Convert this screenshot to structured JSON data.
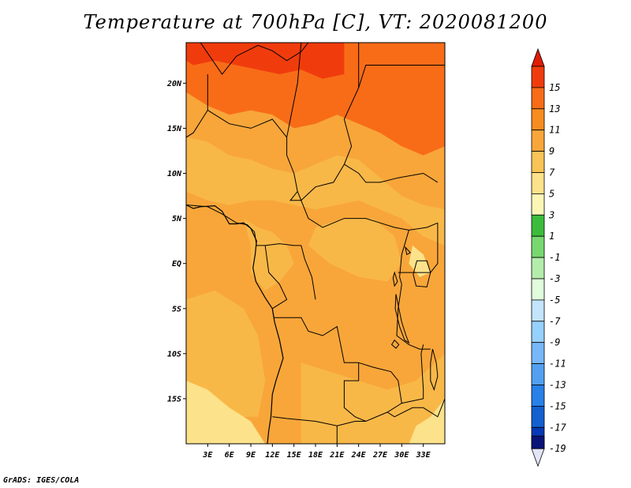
{
  "title": "Temperature at 700hPa [C], VT: 2020081200",
  "credit": "GrADS: IGES/COLA",
  "map": {
    "lon_range": [
      0,
      36
    ],
    "lat_range": [
      -20,
      24.5
    ],
    "lat_ticks": [
      {
        "value": 20,
        "label": "20N"
      },
      {
        "value": 15,
        "label": "15N"
      },
      {
        "value": 10,
        "label": "10N"
      },
      {
        "value": 5,
        "label": "5N"
      },
      {
        "value": 0,
        "label": "EQ"
      },
      {
        "value": -5,
        "label": "5S"
      },
      {
        "value": -10,
        "label": "10S"
      },
      {
        "value": -15,
        "label": "15S"
      }
    ],
    "lon_ticks": [
      {
        "value": 3,
        "label": "3E"
      },
      {
        "value": 6,
        "label": "6E"
      },
      {
        "value": 9,
        "label": "9E"
      },
      {
        "value": 12,
        "label": "12E"
      },
      {
        "value": 15,
        "label": "15E"
      },
      {
        "value": 18,
        "label": "18E"
      },
      {
        "value": 21,
        "label": "21E"
      },
      {
        "value": 24,
        "label": "24E"
      },
      {
        "value": 27,
        "label": "27E"
      },
      {
        "value": 30,
        "label": "30E"
      },
      {
        "value": 33,
        "label": "33E"
      }
    ],
    "background_color": "#f8a63a",
    "regions": [
      {
        "name": "sahara-11-13",
        "color": "#f86c18",
        "coords": [
          [
            0,
            24.5
          ],
          [
            36,
            24.5
          ],
          [
            36,
            13
          ],
          [
            33,
            12
          ],
          [
            30,
            13
          ],
          [
            27,
            14.5
          ],
          [
            24,
            15.5
          ],
          [
            21,
            16.5
          ],
          [
            18,
            15.5
          ],
          [
            15,
            15
          ],
          [
            12,
            16.5
          ],
          [
            9,
            17
          ],
          [
            6,
            16.5
          ],
          [
            3,
            17.5
          ],
          [
            0,
            19
          ]
        ]
      },
      {
        "name": "sahara-13-15",
        "color": "#f03c0c",
        "coords": [
          [
            0,
            24.5
          ],
          [
            22,
            24.5
          ],
          [
            22,
            21
          ],
          [
            19,
            20.5
          ],
          [
            16,
            21.5
          ],
          [
            13,
            21
          ],
          [
            10,
            21.5
          ],
          [
            7,
            22
          ],
          [
            4,
            22.5
          ],
          [
            1,
            22
          ],
          [
            0,
            22.5
          ]
        ]
      },
      {
        "name": "sahel-7-9",
        "color": "#f8b848",
        "coords": [
          [
            0,
            14
          ],
          [
            3,
            13.5
          ],
          [
            6,
            12
          ],
          [
            9,
            11.5
          ],
          [
            12,
            10.5
          ],
          [
            15,
            10
          ],
          [
            18,
            11
          ],
          [
            21,
            12
          ],
          [
            24,
            11.5
          ],
          [
            27,
            9.5
          ],
          [
            30,
            7.5
          ],
          [
            33,
            6.5
          ],
          [
            36,
            6
          ],
          [
            36,
            2
          ],
          [
            33,
            3
          ],
          [
            30,
            5
          ],
          [
            27,
            6
          ],
          [
            24,
            7
          ],
          [
            21,
            6.5
          ],
          [
            18,
            6
          ],
          [
            15,
            6.5
          ],
          [
            12,
            7
          ],
          [
            9,
            7
          ],
          [
            6,
            6.5
          ],
          [
            3,
            7
          ],
          [
            0,
            8
          ]
        ]
      },
      {
        "name": "cameroon-7-9",
        "color": "#f8b848",
        "coords": [
          [
            8,
            5
          ],
          [
            10,
            4
          ],
          [
            12,
            3.5
          ],
          [
            14,
            2
          ],
          [
            15,
            0
          ],
          [
            13,
            -2
          ],
          [
            11,
            -3
          ],
          [
            9,
            -1
          ],
          [
            9,
            2
          ]
        ]
      },
      {
        "name": "drc-north-7-9",
        "color": "#f8b848",
        "coords": [
          [
            18,
            4
          ],
          [
            22,
            5
          ],
          [
            26,
            5
          ],
          [
            29,
            3
          ],
          [
            30,
            0
          ],
          [
            28,
            -2
          ],
          [
            24,
            -1.5
          ],
          [
            20,
            0
          ],
          [
            17,
            2
          ]
        ]
      },
      {
        "name": "coast-7-9",
        "color": "#f8b848",
        "coords": [
          [
            0,
            -4
          ],
          [
            4,
            -3
          ],
          [
            8,
            -5
          ],
          [
            10,
            -8
          ],
          [
            11,
            -13
          ],
          [
            10,
            -17
          ],
          [
            6,
            -17
          ],
          [
            2,
            -15
          ],
          [
            0,
            -13
          ]
        ]
      },
      {
        "name": "south-7-9",
        "color": "#f8b848",
        "coords": [
          [
            16,
            -11
          ],
          [
            20,
            -12
          ],
          [
            24,
            -13
          ],
          [
            28,
            -14
          ],
          [
            32,
            -13
          ],
          [
            36,
            -10
          ],
          [
            36,
            -20
          ],
          [
            16,
            -20
          ]
        ]
      },
      {
        "name": "southwest-5-7",
        "color": "#fce28a",
        "coords": [
          [
            0,
            -13
          ],
          [
            3,
            -14
          ],
          [
            6,
            -16
          ],
          [
            9,
            -17.5
          ],
          [
            11,
            -20
          ],
          [
            0,
            -20
          ]
        ]
      },
      {
        "name": "southeast-5-7",
        "color": "#fce28a",
        "coords": [
          [
            31,
            -20
          ],
          [
            32,
            -18
          ],
          [
            34,
            -17
          ],
          [
            36,
            -15
          ],
          [
            36,
            -20
          ]
        ]
      },
      {
        "name": "uganda-5-7",
        "color": "#fce28a",
        "coords": [
          [
            31.5,
            2
          ],
          [
            33,
            1
          ],
          [
            34,
            -1
          ],
          [
            32.5,
            -1.5
          ],
          [
            31,
            0
          ]
        ]
      }
    ],
    "borders": [
      [
        [
          2,
          24.5
        ],
        [
          5,
          21
        ],
        [
          7,
          23
        ],
        [
          10,
          24.2
        ],
        [
          12,
          23.6
        ],
        [
          14,
          22.5
        ],
        [
          16,
          23.5
        ],
        [
          17,
          24.5
        ]
      ],
      [
        [
          3,
          21
        ],
        [
          3,
          17
        ],
        [
          1,
          14.5
        ],
        [
          0,
          14
        ]
      ],
      [
        [
          3,
          17
        ],
        [
          6,
          15.5
        ],
        [
          9,
          15
        ],
        [
          12,
          16
        ],
        [
          14,
          14
        ]
      ],
      [
        [
          16,
          24.5
        ],
        [
          15.5,
          20
        ],
        [
          14,
          14
        ],
        [
          14,
          12
        ],
        [
          15,
          10
        ],
        [
          15.5,
          8
        ],
        [
          14.5,
          7
        ],
        [
          16,
          7
        ],
        [
          18,
          8.5
        ],
        [
          20.5,
          9
        ],
        [
          22,
          11
        ],
        [
          23,
          13
        ],
        [
          22,
          16
        ],
        [
          24,
          19.5
        ],
        [
          24,
          24.5
        ]
      ],
      [
        [
          24,
          19.5
        ],
        [
          25,
          22
        ],
        [
          36,
          22
        ]
      ],
      [
        [
          22,
          11
        ],
        [
          24,
          10
        ],
        [
          25,
          9
        ],
        [
          27,
          9
        ],
        [
          29.5,
          9.5
        ],
        [
          33,
          10
        ],
        [
          35,
          9
        ]
      ],
      [
        [
          15.5,
          8
        ],
        [
          17,
          5
        ],
        [
          19,
          4
        ],
        [
          22,
          5
        ],
        [
          25,
          5
        ],
        [
          27,
          4.5
        ],
        [
          29,
          4
        ],
        [
          31,
          3.7
        ],
        [
          33.5,
          4
        ],
        [
          35,
          4.5
        ]
      ],
      [
        [
          0,
          6.5
        ],
        [
          3,
          6.3
        ],
        [
          5,
          5.5
        ],
        [
          7,
          4.5
        ],
        [
          8.5,
          4.3
        ],
        [
          9.5,
          3.5
        ],
        [
          9.8,
          2
        ],
        [
          11,
          2
        ],
        [
          13,
          2.2
        ],
        [
          15,
          2
        ],
        [
          16,
          2
        ]
      ],
      [
        [
          16,
          2
        ],
        [
          16.5,
          0.5
        ],
        [
          17.5,
          -1.5
        ],
        [
          18,
          -4
        ]
      ],
      [
        [
          11,
          2
        ],
        [
          11.5,
          -1
        ],
        [
          13,
          -2.3
        ],
        [
          14,
          -4
        ],
        [
          12,
          -5
        ],
        [
          12.2,
          -6
        ]
      ],
      [
        [
          12.2,
          -6
        ],
        [
          13.5,
          -6
        ],
        [
          16,
          -6
        ],
        [
          17,
          -7.5
        ],
        [
          19,
          -8
        ],
        [
          21,
          -7
        ],
        [
          22,
          -11
        ],
        [
          24,
          -11
        ]
      ],
      [
        [
          24,
          -11
        ],
        [
          24,
          -13
        ],
        [
          22,
          -13
        ],
        [
          22,
          -16
        ],
        [
          23.5,
          -17
        ],
        [
          25,
          -17.5
        ],
        [
          28,
          -16.5
        ],
        [
          30,
          -15.5
        ]
      ],
      [
        [
          12,
          -17
        ],
        [
          14,
          -17.2
        ],
        [
          18,
          -17.5
        ],
        [
          21,
          -18
        ],
        [
          23.5,
          -17.5
        ],
        [
          25,
          -17.5
        ]
      ],
      [
        [
          21,
          -18
        ],
        [
          21,
          -20
        ]
      ],
      [
        [
          24,
          -11
        ],
        [
          26,
          -11.5
        ],
        [
          28.5,
          -12
        ],
        [
          29.5,
          -13
        ],
        [
          30,
          -15.5
        ],
        [
          33,
          -15
        ],
        [
          33,
          -14
        ],
        [
          32.7,
          -10
        ],
        [
          33,
          -9
        ]
      ],
      [
        [
          30,
          -2.3
        ],
        [
          29.5,
          -5
        ],
        [
          29.3,
          -8
        ],
        [
          31,
          -9
        ],
        [
          32.5,
          -9.5
        ],
        [
          34,
          -9.5
        ]
      ],
      [
        [
          29.5,
          -1
        ],
        [
          31,
          -1
        ],
        [
          34,
          -1
        ]
      ],
      [
        [
          31,
          3.7
        ],
        [
          30,
          1
        ],
        [
          29.7,
          -1.5
        ],
        [
          30,
          -2.3
        ]
      ],
      [
        [
          35,
          4.5
        ],
        [
          35,
          0
        ],
        [
          34,
          -1
        ]
      ],
      [
        [
          33,
          -16
        ],
        [
          35,
          -17
        ],
        [
          36,
          -15
        ]
      ],
      [
        [
          28,
          -16.5
        ],
        [
          29,
          -17
        ],
        [
          31.5,
          -16
        ],
        [
          33,
          -16
        ]
      ]
    ],
    "coastline": [
      [
        0,
        6.5
      ],
      [
        1,
        6.1
      ],
      [
        2,
        6.3
      ],
      [
        4,
        6.4
      ],
      [
        5,
        5.8
      ],
      [
        6,
        4.4
      ],
      [
        7,
        4.4
      ],
      [
        8,
        4.5
      ],
      [
        9,
        3.9
      ],
      [
        9.8,
        2.5
      ],
      [
        9.6,
        1
      ],
      [
        9.3,
        -0.5
      ],
      [
        9.7,
        -2
      ],
      [
        11,
        -3.8
      ],
      [
        12,
        -5
      ],
      [
        12.3,
        -6.5
      ],
      [
        13,
        -8.5
      ],
      [
        13.5,
        -10.5
      ],
      [
        12.5,
        -13
      ],
      [
        12,
        -14.5
      ],
      [
        11.8,
        -17
      ],
      [
        11.5,
        -18.5
      ],
      [
        11.3,
        -20
      ]
    ],
    "lakes": [
      [
        [
          32.1,
          0.3
        ],
        [
          33.5,
          0.3
        ],
        [
          34,
          -1
        ],
        [
          33.5,
          -2.6
        ],
        [
          32,
          -2.5
        ],
        [
          31.6,
          -1.2
        ]
      ],
      [
        [
          29.2,
          -3.4
        ],
        [
          29.6,
          -5
        ],
        [
          30,
          -6.5
        ],
        [
          30.6,
          -8
        ],
        [
          31,
          -8.8
        ],
        [
          30.4,
          -8.5
        ],
        [
          29.7,
          -7
        ],
        [
          29.1,
          -5
        ]
      ],
      [
        [
          34.3,
          -9.5
        ],
        [
          34.8,
          -11
        ],
        [
          35,
          -12.5
        ],
        [
          34.5,
          -14
        ],
        [
          34,
          -13
        ],
        [
          34,
          -11
        ]
      ],
      [
        [
          29,
          -1
        ],
        [
          29.4,
          -2
        ],
        [
          29,
          -2.5
        ],
        [
          28.8,
          -1.6
        ]
      ],
      [
        [
          30.5,
          1.8
        ],
        [
          31.2,
          1.2
        ],
        [
          30.7,
          1
        ]
      ],
      [
        [
          29,
          -8.5
        ],
        [
          29.6,
          -9
        ],
        [
          29.2,
          -9.4
        ],
        [
          28.6,
          -9
        ]
      ]
    ]
  },
  "colorbar": {
    "levels": [
      {
        "label": "15",
        "color": "#f03c0c"
      },
      {
        "label": "13",
        "color": "#f86c18"
      },
      {
        "label": "11",
        "color": "#f88c20"
      },
      {
        "label": "9",
        "color": "#f8a63a"
      },
      {
        "label": "7",
        "color": "#f8c456"
      },
      {
        "label": "5",
        "color": "#fce28a"
      },
      {
        "label": "3",
        "color": "#fcf6b6"
      },
      {
        "label": "1",
        "color": "#3cbc3c"
      },
      {
        "label": "-1",
        "color": "#78d870"
      },
      {
        "label": "-3",
        "color": "#b4ecac"
      },
      {
        "label": "-5",
        "color": "#e0fcdc"
      },
      {
        "label": "-7",
        "color": "#c4e4fc"
      },
      {
        "label": "-9",
        "color": "#96d0fc"
      },
      {
        "label": "-11",
        "color": "#78b8f8"
      },
      {
        "label": "-13",
        "color": "#54a0f0"
      },
      {
        "label": "-15",
        "color": "#2880e8"
      },
      {
        "label": "-17",
        "color": "#1460d0"
      },
      {
        "label": "-19",
        "color": "#0838b4"
      }
    ],
    "cap_top_color": "#e01c04",
    "cap_bottom_color": "#e4e4f8",
    "bottom_block_color": "#081478"
  }
}
